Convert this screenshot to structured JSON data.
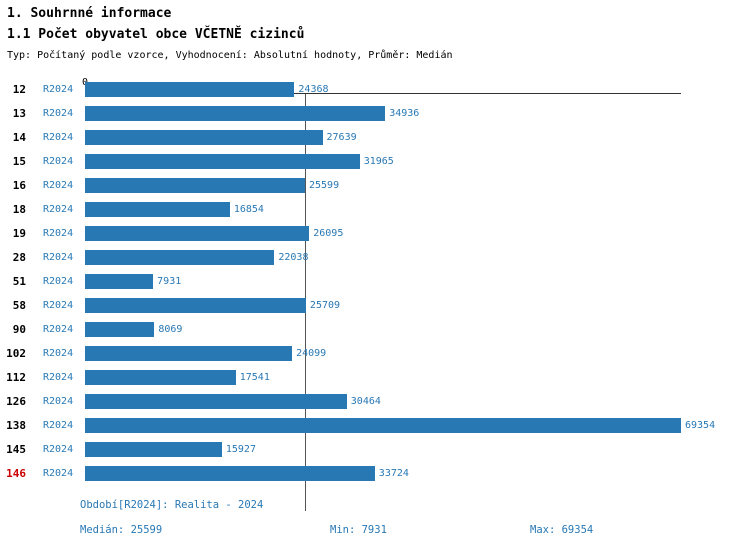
{
  "page": {
    "title": "1. Souhrnné informace",
    "section_title": "1.1 Počet obyvatel obce VČETNĚ cizinců",
    "subtitle": "Typ: Počítaný podle vzorce, Vyhodnocení: Absolutní hodnoty, Průměr: Medián"
  },
  "chart_data": {
    "type": "bar",
    "orientation": "horizontal",
    "series_label": "R2024",
    "categories": [
      "12",
      "13",
      "14",
      "15",
      "16",
      "18",
      "19",
      "28",
      "51",
      "58",
      "90",
      "102",
      "112",
      "126",
      "138",
      "145",
      "146"
    ],
    "values": [
      24368,
      34936,
      27639,
      31965,
      25599,
      16854,
      26095,
      22038,
      7931,
      25709,
      8069,
      24099,
      17541,
      30464,
      69354,
      15927,
      33724
    ],
    "highlight_category": "146",
    "axis": {
      "zero_label": "0",
      "xmin": 0,
      "xmax": 69354
    },
    "median_value": 25599,
    "grid": "median-line-only",
    "legend_position": "none",
    "footer": {
      "period": "Období[R2024]: Realita - 2024",
      "median": "Medián: 25599",
      "min": "Min: 7931",
      "max": "Max: 69354"
    },
    "colors": {
      "bar": "#2878b4",
      "accent_text": "#2878b4",
      "highlight": "#cc0000",
      "axis": "#333333",
      "median_line": "#555555"
    }
  }
}
